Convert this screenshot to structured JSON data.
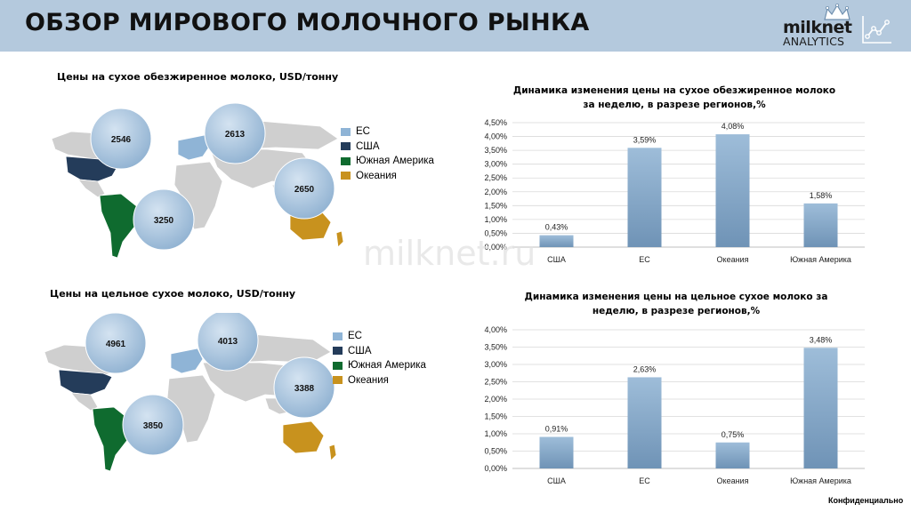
{
  "header": {
    "title": "ОБЗОР МИРОВОГО МОЛОЧНОГО РЫНКА",
    "logo_name": "milknet",
    "logo_sub": "ANALYTICS",
    "logo_icon": "chart-line-icon",
    "background": "#b4c9dd"
  },
  "watermark": "milknet.ru",
  "footer": {
    "confidential": "Конфиденциально"
  },
  "colors": {
    "eu": "#8fb4d6",
    "usa": "#243c5a",
    "south_america": "#0f6b2f",
    "oceania": "#c8921e",
    "bar": "#8aadcd"
  },
  "sections": [
    {
      "map_title": "Цены на сухое обезжиренное молоко, USD/тонну",
      "prices": {
        "usa": "2546",
        "eu": "2613",
        "oceania": "2650",
        "south_america": "3250"
      },
      "legend": [
        "ЕС",
        "США",
        "Южная Америка",
        "Океания"
      ]
    },
    {
      "map_title": "Цены на цельное сухое молоко, USD/тонну",
      "prices": {
        "usa": "4961",
        "eu": "4013",
        "oceania": "3388",
        "south_america": "3850"
      },
      "legend": [
        "ЕС",
        "США",
        "Южная Америка",
        "Океания"
      ]
    }
  ],
  "chart_data": [
    {
      "type": "bar",
      "title_lines": [
        "Динамика изменения цены на сухое обезжиренное молоко",
        "за неделю, в разрезе регионов,%"
      ],
      "categories": [
        "США",
        "ЕС",
        "Океания",
        "Южная Америка"
      ],
      "values": [
        0.43,
        3.59,
        4.08,
        1.58
      ],
      "data_labels": [
        "0,43%",
        "3,59%",
        "4,08%",
        "1,58%"
      ],
      "ylim": [
        0,
        4.5
      ],
      "yticks": [
        0,
        0.5,
        1,
        1.5,
        2,
        2.5,
        3,
        3.5,
        4,
        4.5
      ],
      "ytick_labels": [
        "0,00%",
        "0,50%",
        "1,00%",
        "1,50%",
        "2,00%",
        "2,50%",
        "3,00%",
        "3,50%",
        "4,00%",
        "4,50%"
      ],
      "grid": true,
      "xlabel": "",
      "ylabel": ""
    },
    {
      "type": "bar",
      "title_lines": [
        "Динамика изменения цены на цельное сухое молоко за",
        "неделю, в разрезе регионов,%"
      ],
      "categories": [
        "США",
        "ЕС",
        "Океания",
        "Южная Америка"
      ],
      "values": [
        0.91,
        2.63,
        0.75,
        3.48
      ],
      "data_labels": [
        "0,91%",
        "2,63%",
        "0,75%",
        "3,48%"
      ],
      "ylim": [
        0,
        4
      ],
      "yticks": [
        0,
        0.5,
        1,
        1.5,
        2,
        2.5,
        3,
        3.5,
        4
      ],
      "ytick_labels": [
        "0,00%",
        "0,50%",
        "1,00%",
        "1,50%",
        "2,00%",
        "2,50%",
        "3,00%",
        "3,50%",
        "4,00%"
      ],
      "grid": true,
      "xlabel": "",
      "ylabel": ""
    }
  ]
}
